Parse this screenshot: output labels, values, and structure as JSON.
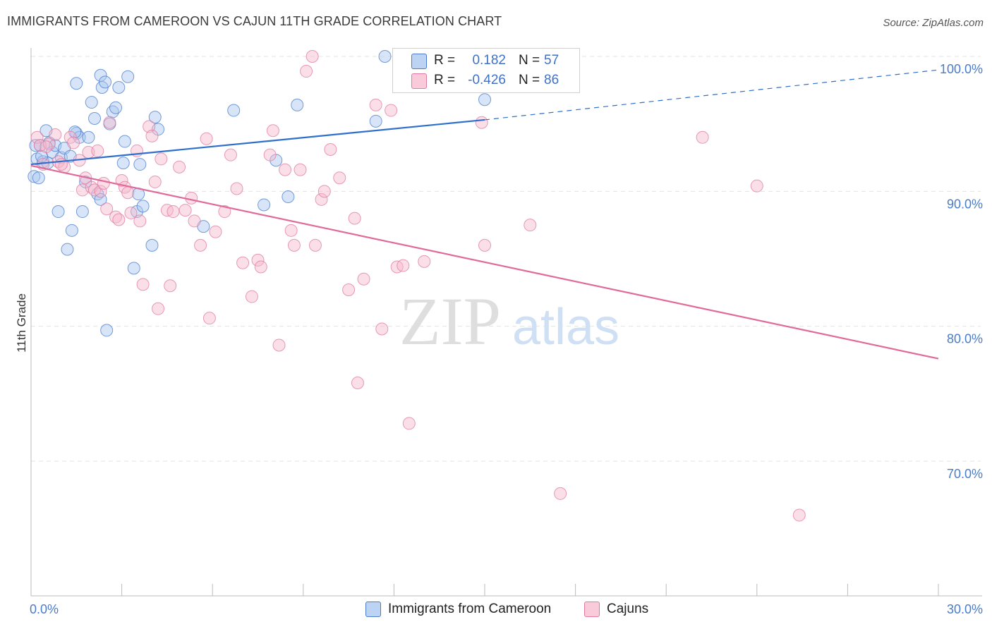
{
  "title": "IMMIGRANTS FROM CAMEROON VS CAJUN 11TH GRADE CORRELATION CHART",
  "source": "Source: ZipAtlas.com",
  "watermark": {
    "zip": "ZIP",
    "atlas": "atlas"
  },
  "stats": [
    {
      "r_label": "R =",
      "r_value": "0.182",
      "n_label": "N =",
      "n_value": "57",
      "color": "#a9c6f0",
      "text_color": "#3f72c8"
    },
    {
      "r_label": "R =",
      "r_value": "-0.426",
      "n_label": "N =",
      "n_value": "86",
      "color": "#f6b8cd",
      "text_color": "#3f72c8"
    }
  ],
  "legend": [
    {
      "label": "Immigrants from Cameroon",
      "color": "#a9c6f0"
    },
    {
      "label": "Cajuns",
      "color": "#f6b8cd"
    }
  ],
  "chart_data": {
    "type": "scatter",
    "ylabel": "11th Grade",
    "xlim": [
      0,
      30
    ],
    "ylim": [
      61,
      101.5
    ],
    "x_tick_labels": [
      {
        "x": 0,
        "label": "0.0%"
      },
      {
        "x": 30,
        "label": "30.0%"
      }
    ],
    "y_tick_labels": [
      {
        "y": 100,
        "label": "100.0%"
      },
      {
        "y": 90,
        "label": "90.0%"
      },
      {
        "y": 80,
        "label": "80.0%"
      },
      {
        "y": 70,
        "label": "70.0%"
      }
    ],
    "grid": true,
    "series": [
      {
        "name": "Immigrants from Cameroon",
        "color": "#a9c6f0",
        "edge": "#4a7cc9",
        "line_color": "#2e6fce",
        "trend": {
          "x0": 0,
          "y0": 92.0,
          "x1": 15,
          "y1": 95.3,
          "dash_to_x": 30,
          "dash_to_y": 99.0
        },
        "points": [
          [
            0.1,
            91.1
          ],
          [
            0.2,
            92.4
          ],
          [
            0.3,
            93.4
          ],
          [
            0.4,
            92.2
          ],
          [
            0.5,
            94.5
          ],
          [
            0.6,
            93.6
          ],
          [
            0.7,
            92.9
          ],
          [
            0.8,
            93.4
          ],
          [
            0.9,
            88.5
          ],
          [
            1.0,
            92.5
          ],
          [
            1.1,
            93.2
          ],
          [
            1.3,
            92.6
          ],
          [
            1.2,
            85.7
          ],
          [
            1.35,
            87.1
          ],
          [
            1.5,
            94.3
          ],
          [
            1.6,
            94.0
          ],
          [
            1.5,
            98.0
          ],
          [
            1.7,
            88.5
          ],
          [
            1.8,
            90.7
          ],
          [
            1.9,
            94.0
          ],
          [
            2.0,
            96.6
          ],
          [
            2.1,
            95.4
          ],
          [
            2.2,
            89.8
          ],
          [
            2.3,
            89.4
          ],
          [
            2.3,
            98.6
          ],
          [
            2.35,
            97.7
          ],
          [
            2.45,
            98.1
          ],
          [
            2.5,
            79.7
          ],
          [
            2.6,
            95.0
          ],
          [
            2.7,
            95.9
          ],
          [
            2.8,
            96.2
          ],
          [
            2.9,
            97.7
          ],
          [
            3.2,
            98.5
          ],
          [
            3.1,
            93.7
          ],
          [
            3.05,
            92.1
          ],
          [
            3.4,
            84.3
          ],
          [
            3.5,
            88.5
          ],
          [
            3.55,
            89.8
          ],
          [
            3.6,
            92.0
          ],
          [
            3.7,
            88.9
          ],
          [
            4.0,
            86.0
          ],
          [
            4.1,
            95.5
          ],
          [
            4.2,
            94.6
          ],
          [
            5.7,
            87.4
          ],
          [
            6.7,
            96.0
          ],
          [
            7.7,
            89.0
          ],
          [
            8.1,
            92.3
          ],
          [
            8.5,
            89.6
          ],
          [
            8.8,
            96.4
          ],
          [
            11.4,
            95.2
          ],
          [
            11.7,
            100.0
          ],
          [
            15.0,
            96.8
          ],
          [
            0.15,
            93.4
          ],
          [
            0.55,
            92.1
          ],
          [
            0.35,
            92.6
          ],
          [
            1.45,
            94.4
          ],
          [
            0.25,
            91.0
          ]
        ]
      },
      {
        "name": "Cajuns",
        "color": "#f6b8cd",
        "edge": "#e07aa0",
        "line_color": "#e06a98",
        "trend": {
          "x0": 0,
          "y0": 91.9,
          "x1": 30,
          "y1": 77.6
        },
        "points": [
          [
            0.2,
            94.0
          ],
          [
            0.3,
            93.4
          ],
          [
            0.4,
            92.0
          ],
          [
            0.6,
            93.5
          ],
          [
            0.8,
            94.2
          ],
          [
            0.9,
            92.2
          ],
          [
            1.1,
            91.8
          ],
          [
            1.3,
            94.0
          ],
          [
            1.4,
            93.6
          ],
          [
            1.6,
            92.3
          ],
          [
            1.7,
            90.1
          ],
          [
            1.8,
            91.0
          ],
          [
            1.9,
            92.9
          ],
          [
            2.0,
            90.3
          ],
          [
            2.1,
            90.1
          ],
          [
            2.3,
            90.0
          ],
          [
            2.2,
            93.0
          ],
          [
            2.4,
            90.6
          ],
          [
            2.5,
            88.7
          ],
          [
            2.6,
            95.1
          ],
          [
            2.8,
            88.1
          ],
          [
            2.9,
            87.9
          ],
          [
            3.0,
            90.8
          ],
          [
            3.1,
            90.3
          ],
          [
            3.2,
            89.9
          ],
          [
            3.3,
            88.4
          ],
          [
            3.5,
            93.0
          ],
          [
            3.6,
            87.8
          ],
          [
            3.7,
            83.1
          ],
          [
            3.9,
            94.8
          ],
          [
            4.0,
            94.1
          ],
          [
            4.1,
            90.7
          ],
          [
            4.2,
            81.3
          ],
          [
            4.3,
            92.4
          ],
          [
            4.5,
            88.6
          ],
          [
            4.6,
            83.0
          ],
          [
            4.7,
            88.5
          ],
          [
            4.9,
            91.8
          ],
          [
            5.1,
            88.6
          ],
          [
            5.3,
            89.5
          ],
          [
            5.4,
            87.8
          ],
          [
            5.6,
            86.0
          ],
          [
            5.8,
            93.9
          ],
          [
            5.9,
            80.6
          ],
          [
            6.1,
            87.0
          ],
          [
            6.4,
            88.5
          ],
          [
            6.6,
            92.7
          ],
          [
            6.8,
            90.2
          ],
          [
            7.0,
            84.7
          ],
          [
            7.3,
            82.2
          ],
          [
            7.5,
            84.9
          ],
          [
            7.6,
            84.4
          ],
          [
            7.9,
            92.7
          ],
          [
            8.0,
            94.5
          ],
          [
            8.2,
            78.6
          ],
          [
            8.4,
            91.6
          ],
          [
            8.6,
            87.1
          ],
          [
            8.7,
            86.0
          ],
          [
            8.9,
            91.6
          ],
          [
            9.1,
            98.9
          ],
          [
            9.3,
            100.0
          ],
          [
            9.4,
            86.0
          ],
          [
            9.6,
            89.4
          ],
          [
            9.7,
            90.0
          ],
          [
            9.9,
            93.1
          ],
          [
            10.2,
            91.0
          ],
          [
            10.5,
            82.7
          ],
          [
            10.7,
            88.0
          ],
          [
            10.8,
            75.8
          ],
          [
            11.0,
            83.5
          ],
          [
            11.4,
            96.4
          ],
          [
            11.6,
            79.8
          ],
          [
            11.9,
            96.0
          ],
          [
            12.1,
            84.4
          ],
          [
            12.3,
            84.5
          ],
          [
            12.5,
            72.8
          ],
          [
            13.0,
            84.8
          ],
          [
            14.9,
            95.1
          ],
          [
            15.0,
            86.0
          ],
          [
            16.5,
            87.5
          ],
          [
            17.5,
            67.6
          ],
          [
            22.2,
            94.0
          ],
          [
            24.0,
            90.4
          ],
          [
            25.4,
            66.0
          ],
          [
            0.5,
            93.3
          ],
          [
            1.0,
            92.0
          ]
        ]
      }
    ]
  }
}
